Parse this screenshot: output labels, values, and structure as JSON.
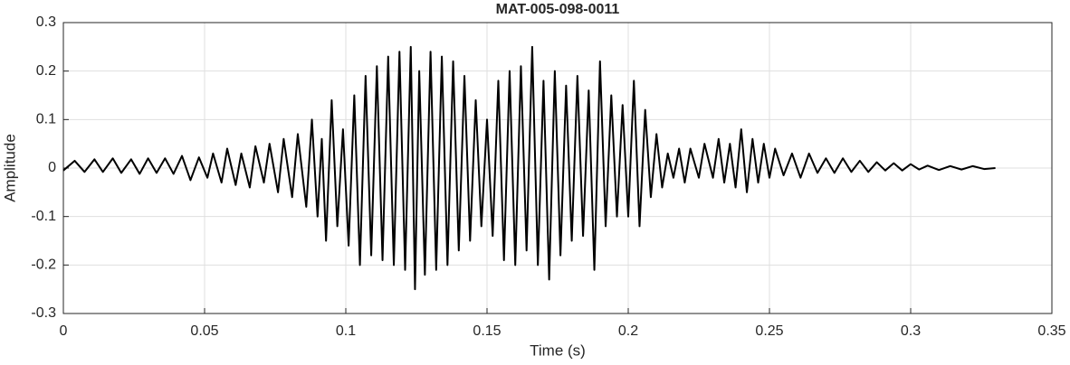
{
  "chart_data": {
    "type": "line",
    "title": "MAT-005-098-0011",
    "x_label": "Time (s)",
    "y_label": "Amplitude",
    "color": "#000000",
    "grid": true,
    "xlim": [
      0,
      0.35
    ],
    "xticks": [
      0,
      0.05,
      0.1,
      0.15,
      0.2,
      0.25,
      0.3,
      0.35
    ],
    "ylim": [
      -0.3,
      0.3
    ],
    "yticks": [
      -0.3,
      -0.2,
      -0.1,
      0,
      0.1,
      0.2,
      0.3
    ],
    "x": [
      0,
      0.004,
      0.0075,
      0.011,
      0.014,
      0.0175,
      0.0205,
      0.024,
      0.027,
      0.03,
      0.033,
      0.036,
      0.039,
      0.042,
      0.045,
      0.048,
      0.051,
      0.053,
      0.056,
      0.058,
      0.061,
      0.063,
      0.066,
      0.068,
      0.071,
      0.073,
      0.076,
      0.078,
      0.081,
      0.083,
      0.086,
      0.088,
      0.09,
      0.0915,
      0.093,
      0.095,
      0.097,
      0.099,
      0.101,
      0.103,
      0.105,
      0.107,
      0.109,
      0.111,
      0.113,
      0.115,
      0.117,
      0.119,
      0.121,
      0.123,
      0.1245,
      0.126,
      0.128,
      0.13,
      0.132,
      0.134,
      0.136,
      0.138,
      0.14,
      0.142,
      0.144,
      0.146,
      0.148,
      0.15,
      0.152,
      0.154,
      0.156,
      0.158,
      0.16,
      0.162,
      0.164,
      0.166,
      0.168,
      0.17,
      0.172,
      0.174,
      0.176,
      0.178,
      0.18,
      0.182,
      0.184,
      0.186,
      0.188,
      0.19,
      0.192,
      0.194,
      0.196,
      0.198,
      0.2,
      0.202,
      0.204,
      0.206,
      0.208,
      0.21,
      0.212,
      0.214,
      0.216,
      0.218,
      0.22,
      0.222,
      0.225,
      0.227,
      0.23,
      0.232,
      0.234,
      0.236,
      0.238,
      0.24,
      0.242,
      0.244,
      0.246,
      0.248,
      0.25,
      0.252,
      0.255,
      0.258,
      0.261,
      0.264,
      0.267,
      0.27,
      0.273,
      0.276,
      0.279,
      0.282,
      0.285,
      0.288,
      0.291,
      0.294,
      0.297,
      0.3,
      0.303,
      0.306,
      0.31,
      0.314,
      0.318,
      0.322,
      0.326,
      0.33
    ],
    "values": [
      -0.005,
      0.015,
      -0.008,
      0.018,
      -0.008,
      0.02,
      -0.01,
      0.018,
      -0.012,
      0.02,
      -0.01,
      0.02,
      -0.012,
      0.025,
      -0.025,
      0.022,
      -0.02,
      0.03,
      -0.03,
      0.04,
      -0.035,
      0.03,
      -0.04,
      0.045,
      -0.03,
      0.05,
      -0.05,
      0.06,
      -0.06,
      0.07,
      -0.08,
      0.1,
      -0.1,
      0.06,
      -0.15,
      0.14,
      -0.12,
      0.08,
      -0.16,
      0.15,
      -0.2,
      0.19,
      -0.18,
      0.21,
      -0.19,
      0.23,
      -0.2,
      0.24,
      -0.21,
      0.25,
      -0.25,
      0.2,
      -0.22,
      0.24,
      -0.21,
      0.23,
      -0.2,
      0.22,
      -0.17,
      0.19,
      -0.15,
      0.14,
      -0.12,
      0.1,
      -0.14,
      0.18,
      -0.19,
      0.2,
      -0.2,
      0.21,
      -0.17,
      0.25,
      -0.2,
      0.18,
      -0.23,
      0.2,
      -0.18,
      0.17,
      -0.15,
      0.19,
      -0.14,
      0.16,
      -0.21,
      0.22,
      -0.12,
      0.15,
      -0.1,
      0.13,
      -0.1,
      0.18,
      -0.12,
      0.12,
      -0.06,
      0.07,
      -0.04,
      0.03,
      -0.02,
      0.04,
      -0.03,
      0.04,
      -0.02,
      0.05,
      -0.02,
      0.06,
      -0.03,
      0.05,
      -0.04,
      0.08,
      -0.05,
      0.06,
      -0.03,
      0.05,
      -0.02,
      0.04,
      -0.015,
      0.03,
      -0.02,
      0.03,
      -0.01,
      0.02,
      -0.01,
      0.02,
      -0.008,
      0.015,
      -0.008,
      0.012,
      -0.005,
      0.01,
      -0.005,
      0.008,
      -0.003,
      0.005,
      -0.004,
      0.004,
      -0.003,
      0.004,
      -0.002,
      0
    ]
  }
}
